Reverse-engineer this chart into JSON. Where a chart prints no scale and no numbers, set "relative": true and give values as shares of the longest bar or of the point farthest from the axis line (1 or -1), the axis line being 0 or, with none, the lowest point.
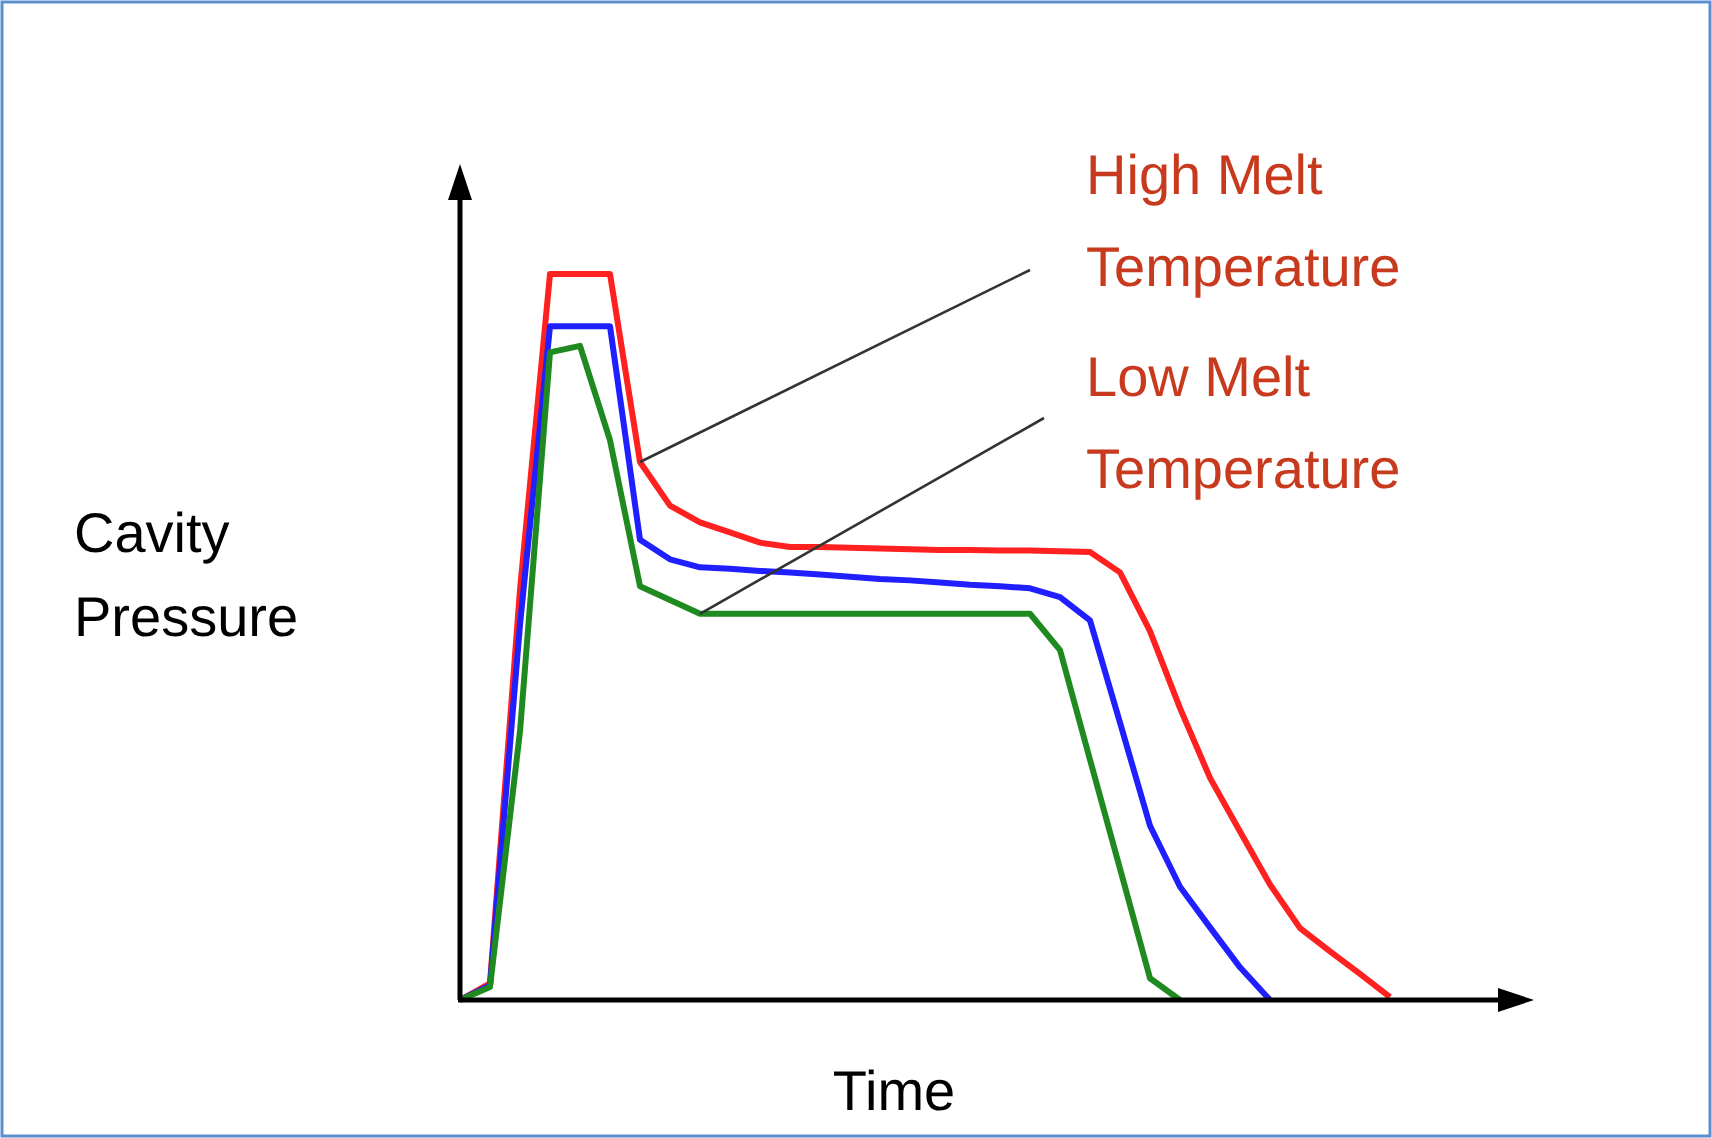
{
  "chart_data": {
    "type": "line",
    "relative": true,
    "xlabel": "Time",
    "ylabel": "Cavity Pressure",
    "categories": [
      null,
      null,
      null,
      null,
      null,
      null,
      null,
      null,
      null,
      null,
      null,
      null,
      null,
      null,
      null,
      null,
      null,
      null,
      null,
      null,
      null,
      null,
      null,
      null,
      null,
      null,
      null,
      null,
      null,
      null,
      null,
      null
    ],
    "series": [
      {
        "color": "#ff2020",
        "values": [
          0,
          0.023,
          0.565,
          1,
          1,
          1,
          0.741,
          0.681,
          0.658,
          0.644,
          0.63,
          0.624,
          0.624,
          0.623,
          0.622,
          0.621,
          0.62,
          0.62,
          0.619,
          0.619,
          0.618,
          0.617,
          0.589,
          0.508,
          0.402,
          0.306,
          0.232,
          0.159,
          0.099,
          0.067,
          0.036,
          0.004
        ]
      },
      {
        "color": "#1f1fff",
        "values": [
          0,
          0.02,
          0.517,
          0.928,
          0.928,
          0.928,
          0.634,
          0.607,
          0.596,
          0.594,
          0.591,
          0.589,
          0.586,
          0.583,
          0.58,
          0.578,
          0.575,
          0.572,
          0.57,
          0.567,
          0.555,
          0.523,
          0.382,
          0.24,
          0.156,
          0.1,
          0.045,
          0,
          null,
          null,
          null,
          null
        ]
      },
      {
        "color": "#1f8a1f",
        "values": [
          0,
          0.018,
          0.37,
          0.892,
          0.901,
          0.771,
          0.57,
          0.551,
          0.532,
          0.532,
          0.532,
          0.532,
          0.532,
          0.532,
          0.532,
          0.532,
          0.532,
          0.532,
          0.532,
          0.532,
          0.482,
          0.331,
          0.181,
          0.03,
          0,
          null,
          null,
          null,
          null,
          null,
          null,
          null
        ]
      }
    ],
    "annotations": [
      "High Melt Temperature",
      "Low Melt Temperature"
    ]
  }
}
